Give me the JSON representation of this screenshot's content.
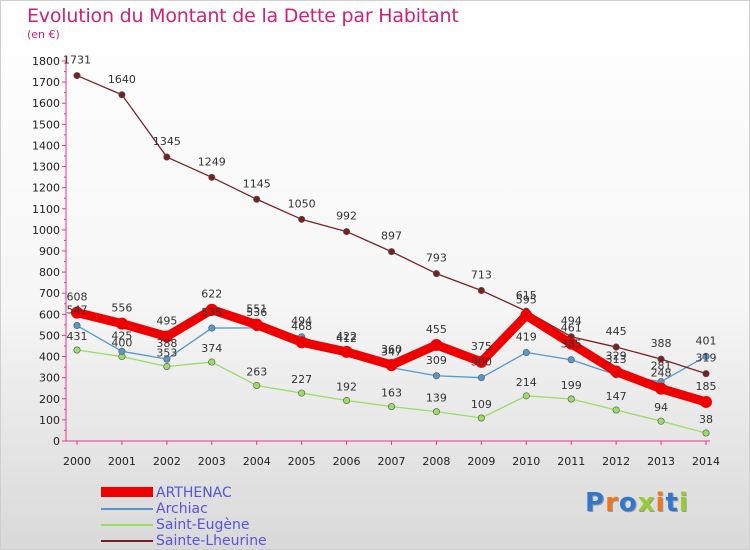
{
  "header": {
    "title": "Evolution du Montant de la Dette par Habitant",
    "subtitle": "(en €)"
  },
  "colors": {
    "ARTHENAC": "#ee0000",
    "Archiac": "#5599cc",
    "Saint-Eugène": "#99dd66",
    "Sainte-Lheurine": "#772222"
  },
  "chart_data": {
    "type": "line",
    "title": "Evolution du Montant de la Dette par Habitant",
    "subtitle": "(en €)",
    "xlabel": "",
    "ylabel": "",
    "x": [
      "2000",
      "2001",
      "2002",
      "2003",
      "2004",
      "2005",
      "2006",
      "2007",
      "2008",
      "2009",
      "2010",
      "2011",
      "2012",
      "2013",
      "2014"
    ],
    "ylim": [
      0,
      1800
    ],
    "yticks": [
      0,
      100,
      200,
      300,
      400,
      500,
      600,
      700,
      800,
      900,
      1000,
      1100,
      1200,
      1300,
      1400,
      1500,
      1600,
      1700,
      1800
    ],
    "grid": false,
    "legend": "bottom-left",
    "series": [
      {
        "name": "ARTHENAC",
        "values": [
          608,
          556,
          495,
          622,
          551,
          468,
          422,
          360,
          455,
          375,
          595,
          461,
          329,
          248,
          185
        ]
      },
      {
        "name": "Archiac",
        "values": [
          547,
          425,
          388,
          535,
          536,
          494,
          412,
          347,
          309,
          300,
          419,
          385,
          313,
          281,
          401
        ]
      },
      {
        "name": "Saint-Eugène",
        "values": [
          431,
          400,
          353,
          374,
          263,
          227,
          192,
          163,
          139,
          109,
          214,
          199,
          147,
          94,
          38
        ]
      },
      {
        "name": "Sainte-Lheurine",
        "values": [
          1731,
          1640,
          1345,
          1249,
          1145,
          1050,
          992,
          897,
          793,
          713,
          615,
          494,
          445,
          388,
          319
        ]
      }
    ]
  },
  "legend": {
    "items": [
      {
        "label": "ARTHENAC"
      },
      {
        "label": "Archiac"
      },
      {
        "label": "Saint-Eugène"
      },
      {
        "label": "Sainte-Lheurine"
      }
    ]
  },
  "logo": {
    "text": "Proxiti"
  }
}
